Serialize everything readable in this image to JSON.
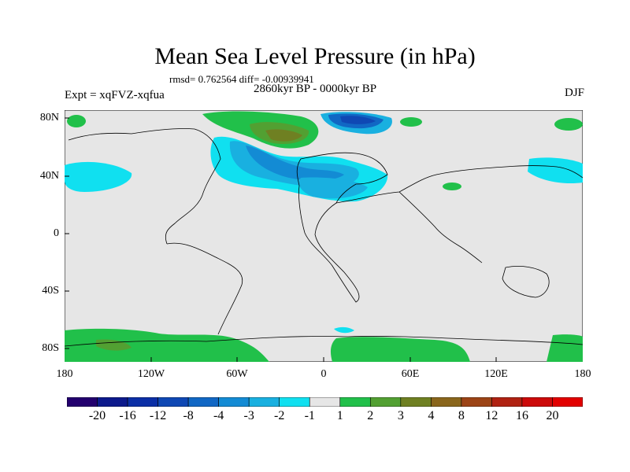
{
  "title": "Mean Sea Level Pressure (in hPa)",
  "stats": "rmsd= 0.762564 diff= -0.00939941",
  "experiment": "Expt = xqFVZ-xqfua",
  "period": "2860kyr BP - 0000kyr BP",
  "season": "DJF",
  "lat_labels": [
    "80N",
    "40N",
    "0",
    "40S",
    "80S"
  ],
  "lon_labels": [
    "180",
    "120W",
    "60W",
    "0",
    "60E",
    "120E",
    "180"
  ],
  "colorbar": {
    "labels": [
      "-20",
      "-16",
      "-12",
      "-8",
      "-4",
      "-3",
      "-2",
      "-1",
      "1",
      "2",
      "3",
      "4",
      "8",
      "12",
      "16",
      "20"
    ],
    "colors": [
      "#23006e",
      "#0d1a8c",
      "#0b2fa6",
      "#0f48b4",
      "#1167c4",
      "#138bd4",
      "#19b0e0",
      "#10e0f0",
      "#e6e6e6",
      "#21c04a",
      "#52a032",
      "#6f8022",
      "#8a661c",
      "#9c4416",
      "#b02212",
      "#cc0a0a",
      "#e20000"
    ]
  },
  "colors": {
    "background_field": "#e6e6e6",
    "coast": "#000000"
  }
}
